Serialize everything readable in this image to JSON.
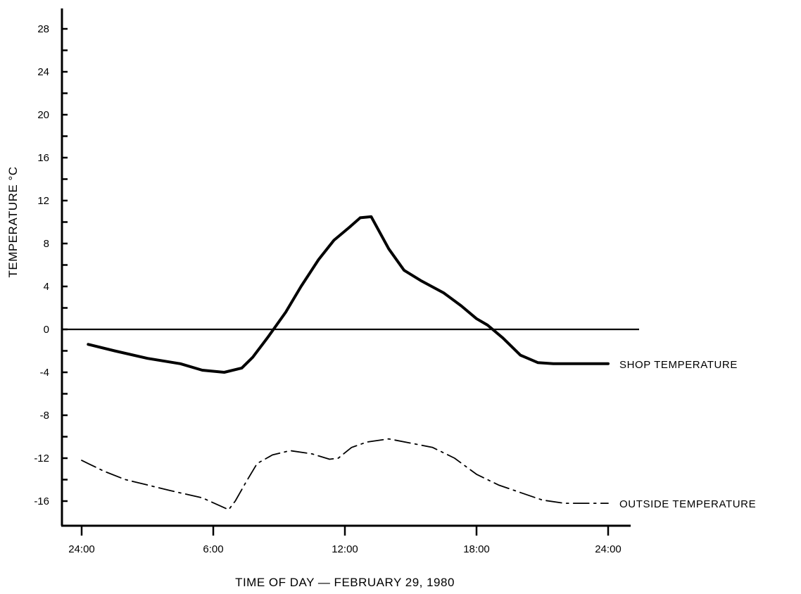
{
  "chart_data": {
    "type": "line",
    "title": "",
    "xlabel": "TIME OF DAY — FEBRUARY 29, 1980",
    "ylabel": "TEMPERATURE °C",
    "xlim": [
      0,
      24
    ],
    "ylim": [
      -18,
      30
    ],
    "x_ticks": [
      {
        "value": 0,
        "label": "24:00"
      },
      {
        "value": 6,
        "label": "6:00"
      },
      {
        "value": 12,
        "label": "12:00"
      },
      {
        "value": 18,
        "label": "18:00"
      },
      {
        "value": 24,
        "label": "24:00"
      }
    ],
    "y_ticks": [
      {
        "value": 28,
        "label": "28"
      },
      {
        "value": 24,
        "label": "24"
      },
      {
        "value": 20,
        "label": "20"
      },
      {
        "value": 16,
        "label": "16"
      },
      {
        "value": 12,
        "label": "12"
      },
      {
        "value": 8,
        "label": "8"
      },
      {
        "value": 4,
        "label": "4"
      },
      {
        "value": 0,
        "label": "0"
      },
      {
        "value": -4,
        "label": "-4"
      },
      {
        "value": -8,
        "label": "-8"
      },
      {
        "value": -12,
        "label": "-12"
      },
      {
        "value": -16,
        "label": "-16"
      }
    ],
    "y_minor_step": 2,
    "zero_line": true,
    "grid": false,
    "series": [
      {
        "name": "SHOP TEMPERATURE",
        "style": "solid",
        "x": [
          0.3,
          1.5,
          3.0,
          4.5,
          5.5,
          6.5,
          7.3,
          7.8,
          8.5,
          9.3,
          10.0,
          10.8,
          11.5,
          12.2,
          12.7,
          13.2,
          14.0,
          14.7,
          15.5,
          16.5,
          17.3,
          18.0,
          18.5,
          19.2,
          20.0,
          20.8,
          21.5,
          24.0
        ],
        "values": [
          -1.4,
          -2.0,
          -2.7,
          -3.2,
          -3.8,
          -4.0,
          -3.6,
          -2.6,
          -0.7,
          1.6,
          4.0,
          6.5,
          8.3,
          9.5,
          10.4,
          10.5,
          7.5,
          5.5,
          4.5,
          3.4,
          2.2,
          1.0,
          0.4,
          -0.8,
          -2.4,
          -3.1,
          -3.2,
          -3.2
        ],
        "end_label": "SHOP TEMPERATURE"
      },
      {
        "name": "OUTSIDE TEMPERATURE",
        "style": "dash-dot",
        "x": [
          0.0,
          1.0,
          2.0,
          3.0,
          4.0,
          5.5,
          6.7,
          7.0,
          7.5,
          8.0,
          8.7,
          9.5,
          10.5,
          11.3,
          11.7,
          12.3,
          13.0,
          14.0,
          15.0,
          16.0,
          17.0,
          18.0,
          19.0,
          20.0,
          21.0,
          22.0,
          23.0,
          24.0
        ],
        "values": [
          -12.2,
          -13.2,
          -14.0,
          -14.5,
          -15.0,
          -15.7,
          -16.8,
          -16.0,
          -14.2,
          -12.5,
          -11.7,
          -11.3,
          -11.6,
          -12.1,
          -12.0,
          -11.0,
          -10.5,
          -10.2,
          -10.6,
          -11.0,
          -12.0,
          -13.5,
          -14.5,
          -15.2,
          -15.9,
          -16.2,
          -16.2,
          -16.2
        ],
        "end_label": "OUTSIDE TEMPERATURE"
      }
    ]
  }
}
